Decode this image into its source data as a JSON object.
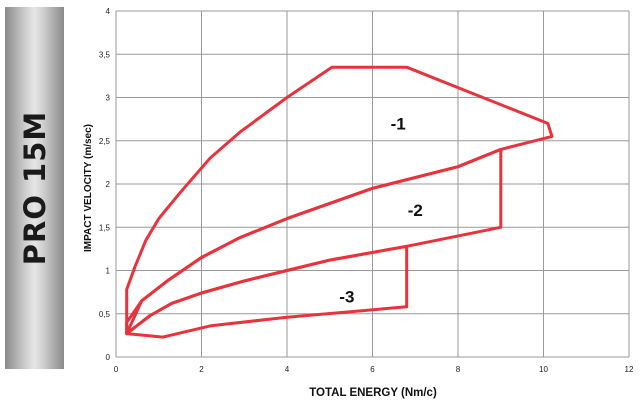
{
  "sidebar": {
    "model": "PRO 15M"
  },
  "chart_data": {
    "type": "line",
    "xlabel": "TOTAL ENERGY (Nm/c)",
    "ylabel": "IMPACT VELOCITY (m/sec)",
    "xlim": [
      0,
      12
    ],
    "ylim": [
      0,
      4
    ],
    "xticks": [
      0,
      2,
      4,
      6,
      8,
      10,
      12
    ],
    "xtick_labels": [
      "0",
      "2",
      "4",
      "6",
      "8",
      "10",
      "12"
    ],
    "yticks": [
      0,
      0.5,
      1,
      1.5,
      2,
      2.5,
      3,
      3.5,
      4
    ],
    "ytick_labels": [
      "0",
      "0,5",
      "1",
      "1,5",
      "2",
      "2,5",
      "3",
      "3,5",
      "4"
    ],
    "grid": true,
    "line_color": "#e8333c",
    "series": [
      {
        "name": "-1",
        "label_at": [
          6.6,
          2.7
        ],
        "points": [
          [
            0.25,
            0.27
          ],
          [
            0.25,
            0.78
          ],
          [
            0.45,
            1.05
          ],
          [
            0.7,
            1.35
          ],
          [
            1.0,
            1.6
          ],
          [
            1.5,
            1.9
          ],
          [
            2.2,
            2.3
          ],
          [
            2.9,
            2.6
          ],
          [
            4.0,
            3.0
          ],
          [
            5.05,
            3.35
          ],
          [
            6.8,
            3.35
          ],
          [
            10.1,
            2.7
          ],
          [
            10.2,
            2.55
          ],
          [
            9.0,
            2.4
          ],
          [
            8.0,
            2.2
          ],
          [
            6.0,
            1.95
          ],
          [
            4.0,
            1.6
          ],
          [
            2.9,
            1.38
          ],
          [
            2.0,
            1.15
          ],
          [
            1.2,
            0.88
          ],
          [
            0.6,
            0.65
          ],
          [
            0.25,
            0.27
          ]
        ]
      },
      {
        "name": "-2",
        "label_at": [
          7.0,
          1.7
        ],
        "points": [
          [
            0.25,
            0.27
          ],
          [
            0.25,
            0.4
          ],
          [
            0.6,
            0.65
          ],
          [
            1.2,
            0.88
          ],
          [
            2.0,
            1.15
          ],
          [
            2.9,
            1.38
          ],
          [
            4.0,
            1.6
          ],
          [
            6.0,
            1.95
          ],
          [
            8.0,
            2.2
          ],
          [
            9.0,
            2.4
          ],
          [
            9.0,
            1.5
          ],
          [
            6.8,
            1.28
          ],
          [
            5.0,
            1.12
          ],
          [
            4.0,
            1.0
          ],
          [
            3.0,
            0.88
          ],
          [
            2.0,
            0.74
          ],
          [
            1.3,
            0.62
          ],
          [
            0.8,
            0.48
          ],
          [
            0.25,
            0.27
          ]
        ]
      },
      {
        "name": "-3",
        "label_at": [
          5.4,
          0.7
        ],
        "points": [
          [
            0.25,
            0.27
          ],
          [
            0.8,
            0.48
          ],
          [
            1.3,
            0.62
          ],
          [
            2.0,
            0.74
          ],
          [
            3.0,
            0.88
          ],
          [
            4.0,
            1.0
          ],
          [
            5.0,
            1.12
          ],
          [
            6.8,
            1.28
          ],
          [
            6.8,
            0.58
          ],
          [
            4.0,
            0.46
          ],
          [
            2.2,
            0.36
          ],
          [
            1.1,
            0.23
          ],
          [
            0.25,
            0.27
          ]
        ]
      }
    ]
  }
}
